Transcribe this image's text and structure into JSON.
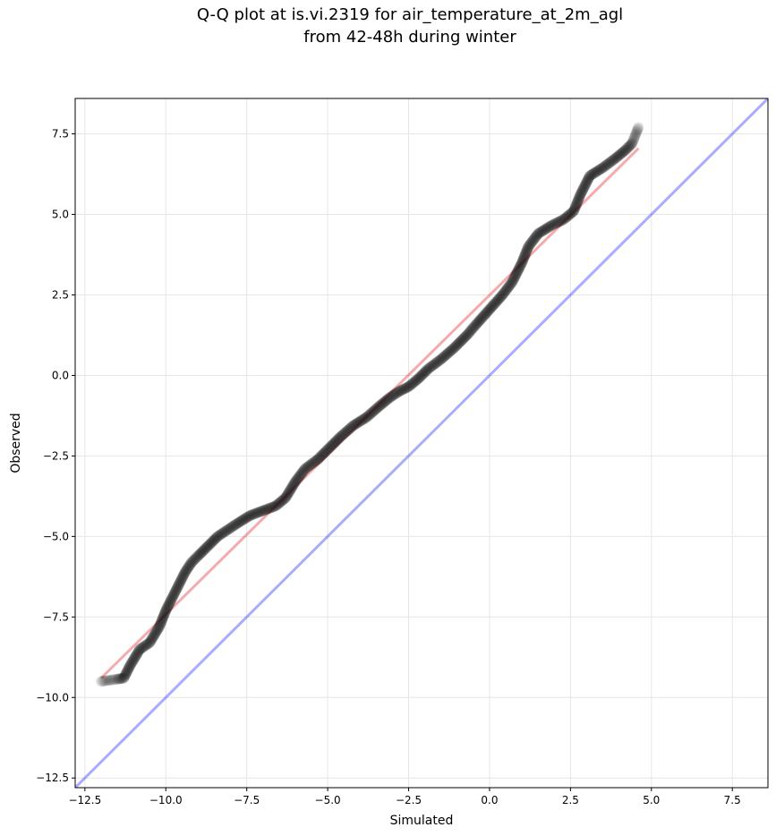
{
  "chart_data": {
    "type": "scatter",
    "title_line1": "Q-Q plot at is.vi.2319 for air_temperature_at_2m_agl",
    "title_line2": "from 42-48h during winter",
    "xlabel": "Simulated",
    "ylabel": "Observed",
    "xlim": [
      -12.8,
      8.6
    ],
    "ylim": [
      -12.8,
      8.6
    ],
    "xticks": [
      -12.5,
      -10.0,
      -7.5,
      -5.0,
      -2.5,
      0.0,
      2.5,
      5.0,
      7.5
    ],
    "yticks": [
      -12.5,
      -10.0,
      -7.5,
      -5.0,
      -2.5,
      0.0,
      2.5,
      5.0,
      7.5
    ],
    "xtick_labels": [
      "−12.5",
      "−10.0",
      "−7.5",
      "−5.0",
      "−2.5",
      "0.0",
      "2.5",
      "5.0",
      "7.5"
    ],
    "ytick_labels": [
      "−12.5",
      "−10.0",
      "−7.5",
      "−5.0",
      "−2.5",
      "0.0",
      "2.5",
      "5.0",
      "7.5"
    ],
    "grid": true,
    "reference_line": {
      "name": "1:1",
      "color": "#0000ff",
      "alpha": 0.33
    },
    "fit_line": {
      "x": [
        -12.0,
        4.6
      ],
      "y": [
        -9.4,
        7.05
      ],
      "color": "#e00000",
      "alpha": 0.33
    },
    "point_color": "#000000",
    "quantile_curve": [
      [
        -12.0,
        -9.5
      ],
      [
        -11.3,
        -9.4
      ],
      [
        -11.1,
        -9.0
      ],
      [
        -10.8,
        -8.5
      ],
      [
        -10.5,
        -8.3
      ],
      [
        -10.2,
        -7.8
      ],
      [
        -10.0,
        -7.3
      ],
      [
        -9.8,
        -6.9
      ],
      [
        -9.6,
        -6.5
      ],
      [
        -9.4,
        -6.1
      ],
      [
        -9.2,
        -5.8
      ],
      [
        -9.0,
        -5.6
      ],
      [
        -8.7,
        -5.3
      ],
      [
        -8.4,
        -5.0
      ],
      [
        -8.1,
        -4.8
      ],
      [
        -7.8,
        -4.6
      ],
      [
        -7.4,
        -4.35
      ],
      [
        -7.0,
        -4.2
      ],
      [
        -6.6,
        -4.05
      ],
      [
        -6.3,
        -3.8
      ],
      [
        -6.0,
        -3.3
      ],
      [
        -5.7,
        -2.9
      ],
      [
        -5.3,
        -2.6
      ],
      [
        -4.9,
        -2.2
      ],
      [
        -4.6,
        -1.9
      ],
      [
        -4.2,
        -1.55
      ],
      [
        -3.8,
        -1.3
      ],
      [
        -3.4,
        -0.95
      ],
      [
        -3.1,
        -0.7
      ],
      [
        -2.8,
        -0.5
      ],
      [
        -2.5,
        -0.35
      ],
      [
        -2.2,
        -0.1
      ],
      [
        -1.9,
        0.2
      ],
      [
        -1.5,
        0.5
      ],
      [
        -1.1,
        0.85
      ],
      [
        -0.7,
        1.25
      ],
      [
        -0.4,
        1.6
      ],
      [
        0.0,
        2.05
      ],
      [
        0.4,
        2.5
      ],
      [
        0.7,
        2.9
      ],
      [
        1.0,
        3.5
      ],
      [
        1.2,
        4.0
      ],
      [
        1.5,
        4.4
      ],
      [
        1.9,
        4.65
      ],
      [
        2.3,
        4.85
      ],
      [
        2.6,
        5.1
      ],
      [
        2.8,
        5.6
      ],
      [
        3.1,
        6.2
      ],
      [
        3.5,
        6.45
      ],
      [
        3.9,
        6.75
      ],
      [
        4.2,
        7.0
      ],
      [
        4.4,
        7.2
      ],
      [
        4.5,
        7.45
      ],
      [
        4.6,
        7.7
      ]
    ]
  }
}
